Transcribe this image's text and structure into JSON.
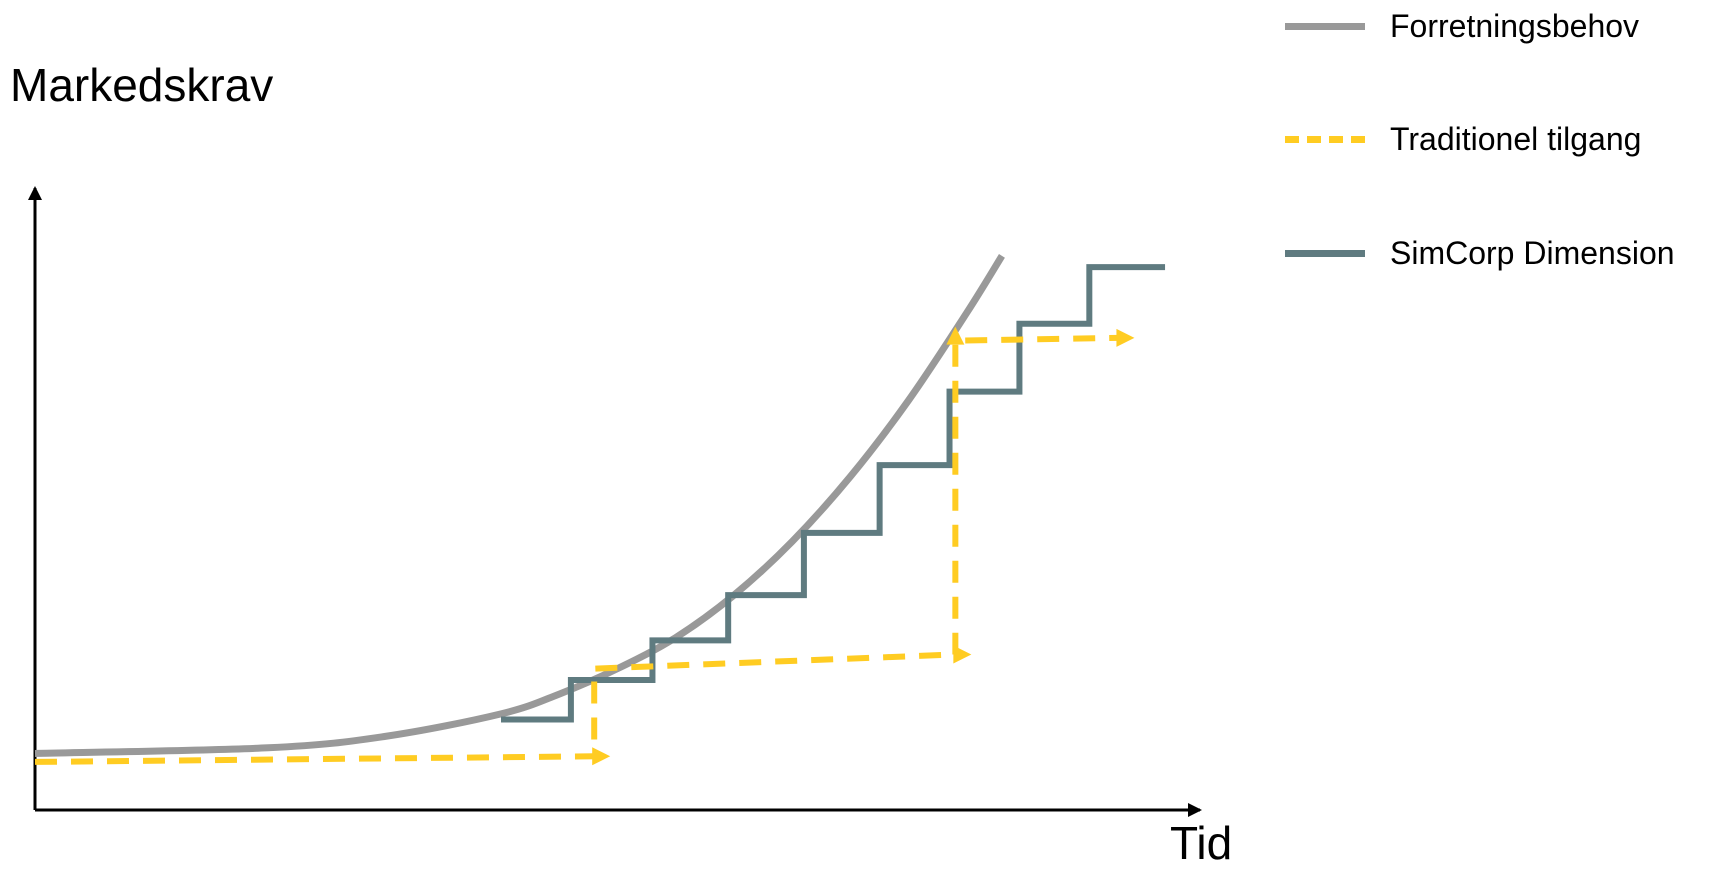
{
  "chart_data": {
    "type": "line",
    "ylabel": "Markedskrav",
    "xlabel": "Tid",
    "colors": {
      "business": "#999999",
      "traditional": "#FFCC22",
      "simcorp": "#5F7B80",
      "axis": "#000000"
    },
    "series": [
      {
        "name": "Forretningsbehov",
        "style": "smooth-curve",
        "points": [
          [
            0,
            1.0
          ],
          [
            2,
            1.1
          ],
          [
            3,
            1.3
          ],
          [
            4,
            1.7
          ],
          [
            4.5,
            2.05
          ],
          [
            5,
            2.5
          ],
          [
            5.5,
            3.05
          ],
          [
            6,
            3.8
          ],
          [
            6.5,
            4.75
          ],
          [
            7,
            5.9
          ],
          [
            7.5,
            7.25
          ],
          [
            8,
            8.8
          ],
          [
            8.3,
            9.8
          ]
        ]
      },
      {
        "name": "Traditionel tilgang",
        "style": "dashed-step",
        "points": [
          [
            0,
            0.85
          ],
          [
            4.8,
            0.95
          ],
          [
            4.8,
            2.5
          ],
          [
            7.9,
            2.75
          ],
          [
            7.9,
            8.3
          ],
          [
            9.3,
            8.35
          ]
        ]
      },
      {
        "name": "SimCorp Dimension",
        "style": "step",
        "points": [
          [
            4,
            1.6
          ],
          [
            4.6,
            1.6
          ],
          [
            4.6,
            2.3
          ],
          [
            5.3,
            2.3
          ],
          [
            5.3,
            3.0
          ],
          [
            5.95,
            3.0
          ],
          [
            5.95,
            3.8
          ],
          [
            6.6,
            3.8
          ],
          [
            6.6,
            4.9
          ],
          [
            7.25,
            4.9
          ],
          [
            7.25,
            6.1
          ],
          [
            7.85,
            6.1
          ],
          [
            7.85,
            7.4
          ],
          [
            8.45,
            7.4
          ],
          [
            8.45,
            8.6
          ],
          [
            9.05,
            8.6
          ],
          [
            9.05,
            9.6
          ],
          [
            9.7,
            9.6
          ]
        ]
      }
    ],
    "legend_position": "top-right"
  }
}
